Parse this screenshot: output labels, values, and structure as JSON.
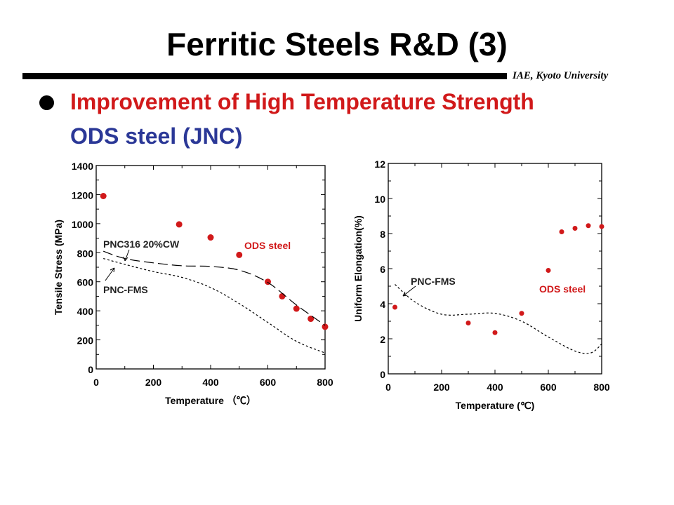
{
  "slide": {
    "title": "Ferritic Steels R&D (3)",
    "affiliation": "IAE, Kyoto University",
    "bullet": "Improvement of High Temperature Strength",
    "subheading": "ODS steel (JNC)"
  },
  "colors": {
    "accent_red": "#d1191a",
    "subheading_blue": "#2b3897"
  },
  "chart_data": [
    {
      "type": "scatter",
      "xlabel": "Temperature （℃）",
      "ylabel": "Tensile Stress (MPa)",
      "xlim": [
        0,
        800
      ],
      "ylim": [
        0,
        1400
      ],
      "xticks": [
        0,
        200,
        400,
        600,
        800
      ],
      "yticks": [
        0,
        200,
        400,
        600,
        800,
        1000,
        1200,
        1400
      ],
      "series": [
        {
          "name": "ODS steel",
          "style": "points",
          "color": "#d1191a",
          "points": [
            [
              25,
              1190
            ],
            [
              290,
              995
            ],
            [
              400,
              905
            ],
            [
              500,
              785
            ],
            [
              600,
              600
            ],
            [
              650,
              500
            ],
            [
              700,
              415
            ],
            [
              750,
              345
            ],
            [
              800,
              290
            ]
          ]
        },
        {
          "name": "PNC316 20%CW",
          "style": "long-dash",
          "color": "#000000",
          "points": [
            [
              25,
              810
            ],
            [
              100,
              760
            ],
            [
              200,
              730
            ],
            [
              300,
              710
            ],
            [
              400,
              705
            ],
            [
              500,
              680
            ],
            [
              600,
              595
            ],
            [
              700,
              440
            ],
            [
              800,
              300
            ]
          ]
        },
        {
          "name": "PNC-FMS",
          "style": "short-dash",
          "color": "#000000",
          "points": [
            [
              25,
              760
            ],
            [
              100,
              720
            ],
            [
              200,
              670
            ],
            [
              300,
              630
            ],
            [
              400,
              560
            ],
            [
              500,
              450
            ],
            [
              600,
              320
            ],
            [
              700,
              190
            ],
            [
              800,
              110
            ]
          ]
        }
      ],
      "annotations": [
        "PNC316 20%CW",
        "PNC-FMS",
        "ODS steel"
      ],
      "grid": false
    },
    {
      "type": "scatter",
      "xlabel": "Temperature (℃)",
      "ylabel": "Uniform Elongation(%)",
      "xlim": [
        0,
        800
      ],
      "ylim": [
        0,
        12
      ],
      "xticks": [
        0,
        200,
        400,
        600,
        800
      ],
      "yticks": [
        0,
        2,
        4,
        6,
        8,
        10,
        12
      ],
      "series": [
        {
          "name": "ODS steel",
          "style": "points",
          "color": "#d1191a",
          "points": [
            [
              25,
              3.8
            ],
            [
              300,
              2.9
            ],
            [
              400,
              2.35
            ],
            [
              500,
              3.45
            ],
            [
              600,
              5.9
            ],
            [
              650,
              8.1
            ],
            [
              700,
              8.3
            ],
            [
              750,
              8.45
            ],
            [
              800,
              8.4
            ]
          ]
        },
        {
          "name": "PNC-FMS",
          "style": "short-dash",
          "color": "#000000",
          "points": [
            [
              25,
              5.1
            ],
            [
              100,
              4.1
            ],
            [
              200,
              3.4
            ],
            [
              300,
              3.4
            ],
            [
              400,
              3.45
            ],
            [
              500,
              3.0
            ],
            [
              600,
              2.1
            ],
            [
              700,
              1.3
            ],
            [
              760,
              1.2
            ],
            [
              800,
              1.7
            ]
          ]
        }
      ],
      "annotations": [
        "PNC-FMS",
        "ODS steel"
      ],
      "grid": false
    }
  ]
}
